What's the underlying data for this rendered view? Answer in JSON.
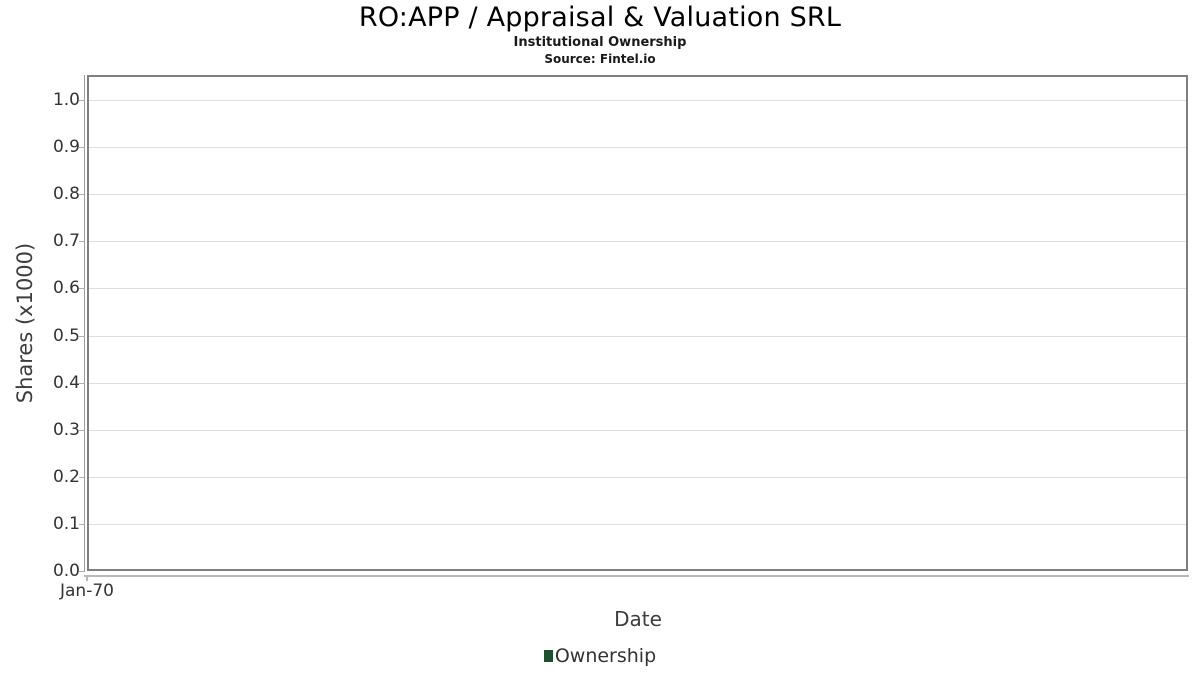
{
  "chart_data": {
    "type": "line",
    "title": "RO:APP / Appraisal & Valuation SRL",
    "subtitle": "Institutional Ownership",
    "source": "Source: Fintel.io",
    "xlabel": "Date",
    "ylabel": "Shares (x1000)",
    "x_ticks": [
      {
        "label": "Jan-70",
        "position": 0
      }
    ],
    "y_ticks": [
      "0.0",
      "0.1",
      "0.2",
      "0.3",
      "0.4",
      "0.5",
      "0.6",
      "0.7",
      "0.8",
      "0.9",
      "1.0"
    ],
    "ylim": [
      0.0,
      1.05
    ],
    "grid": true,
    "legend_position": "bottom-center",
    "series": [
      {
        "name": "Ownership",
        "color": "#1c5130",
        "values": []
      }
    ]
  },
  "colors": {
    "gridline": "#dddddd",
    "plot_border": "#7f7f7f",
    "y_axis_line": "#9a9a9a",
    "x_axis_line": "#b8b8b8",
    "tick": "#b0b0b0",
    "tick_text": "#333333",
    "axis_title_text": "#3d3d3d",
    "title_text": "#000000",
    "legend_marker": "#1c5130",
    "background": "#ffffff"
  }
}
